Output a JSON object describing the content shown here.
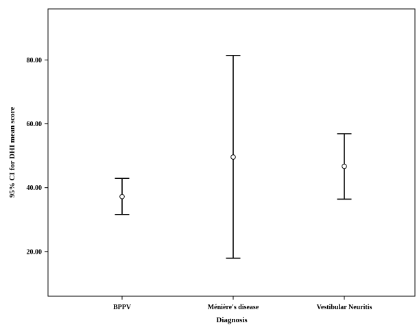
{
  "chart_data": {
    "type": "errorbar",
    "title": "",
    "xlabel": "Diagnosis",
    "ylabel": "95% CI for DHI mean score",
    "categories": [
      "BPPV",
      "Ménière's disease",
      "Vestibular Neuritis"
    ],
    "series": [
      {
        "means": [
          37.2,
          49.6,
          46.7
        ],
        "lower": [
          31.6,
          17.9,
          36.4
        ],
        "upper": [
          42.9,
          81.4,
          56.9
        ]
      }
    ],
    "yticks": [
      20,
      40,
      60,
      80
    ],
    "ytick_labels": [
      "20.00",
      "40.00",
      "60.00",
      "80.00"
    ],
    "ylim": [
      6,
      96
    ],
    "grid": false
  }
}
